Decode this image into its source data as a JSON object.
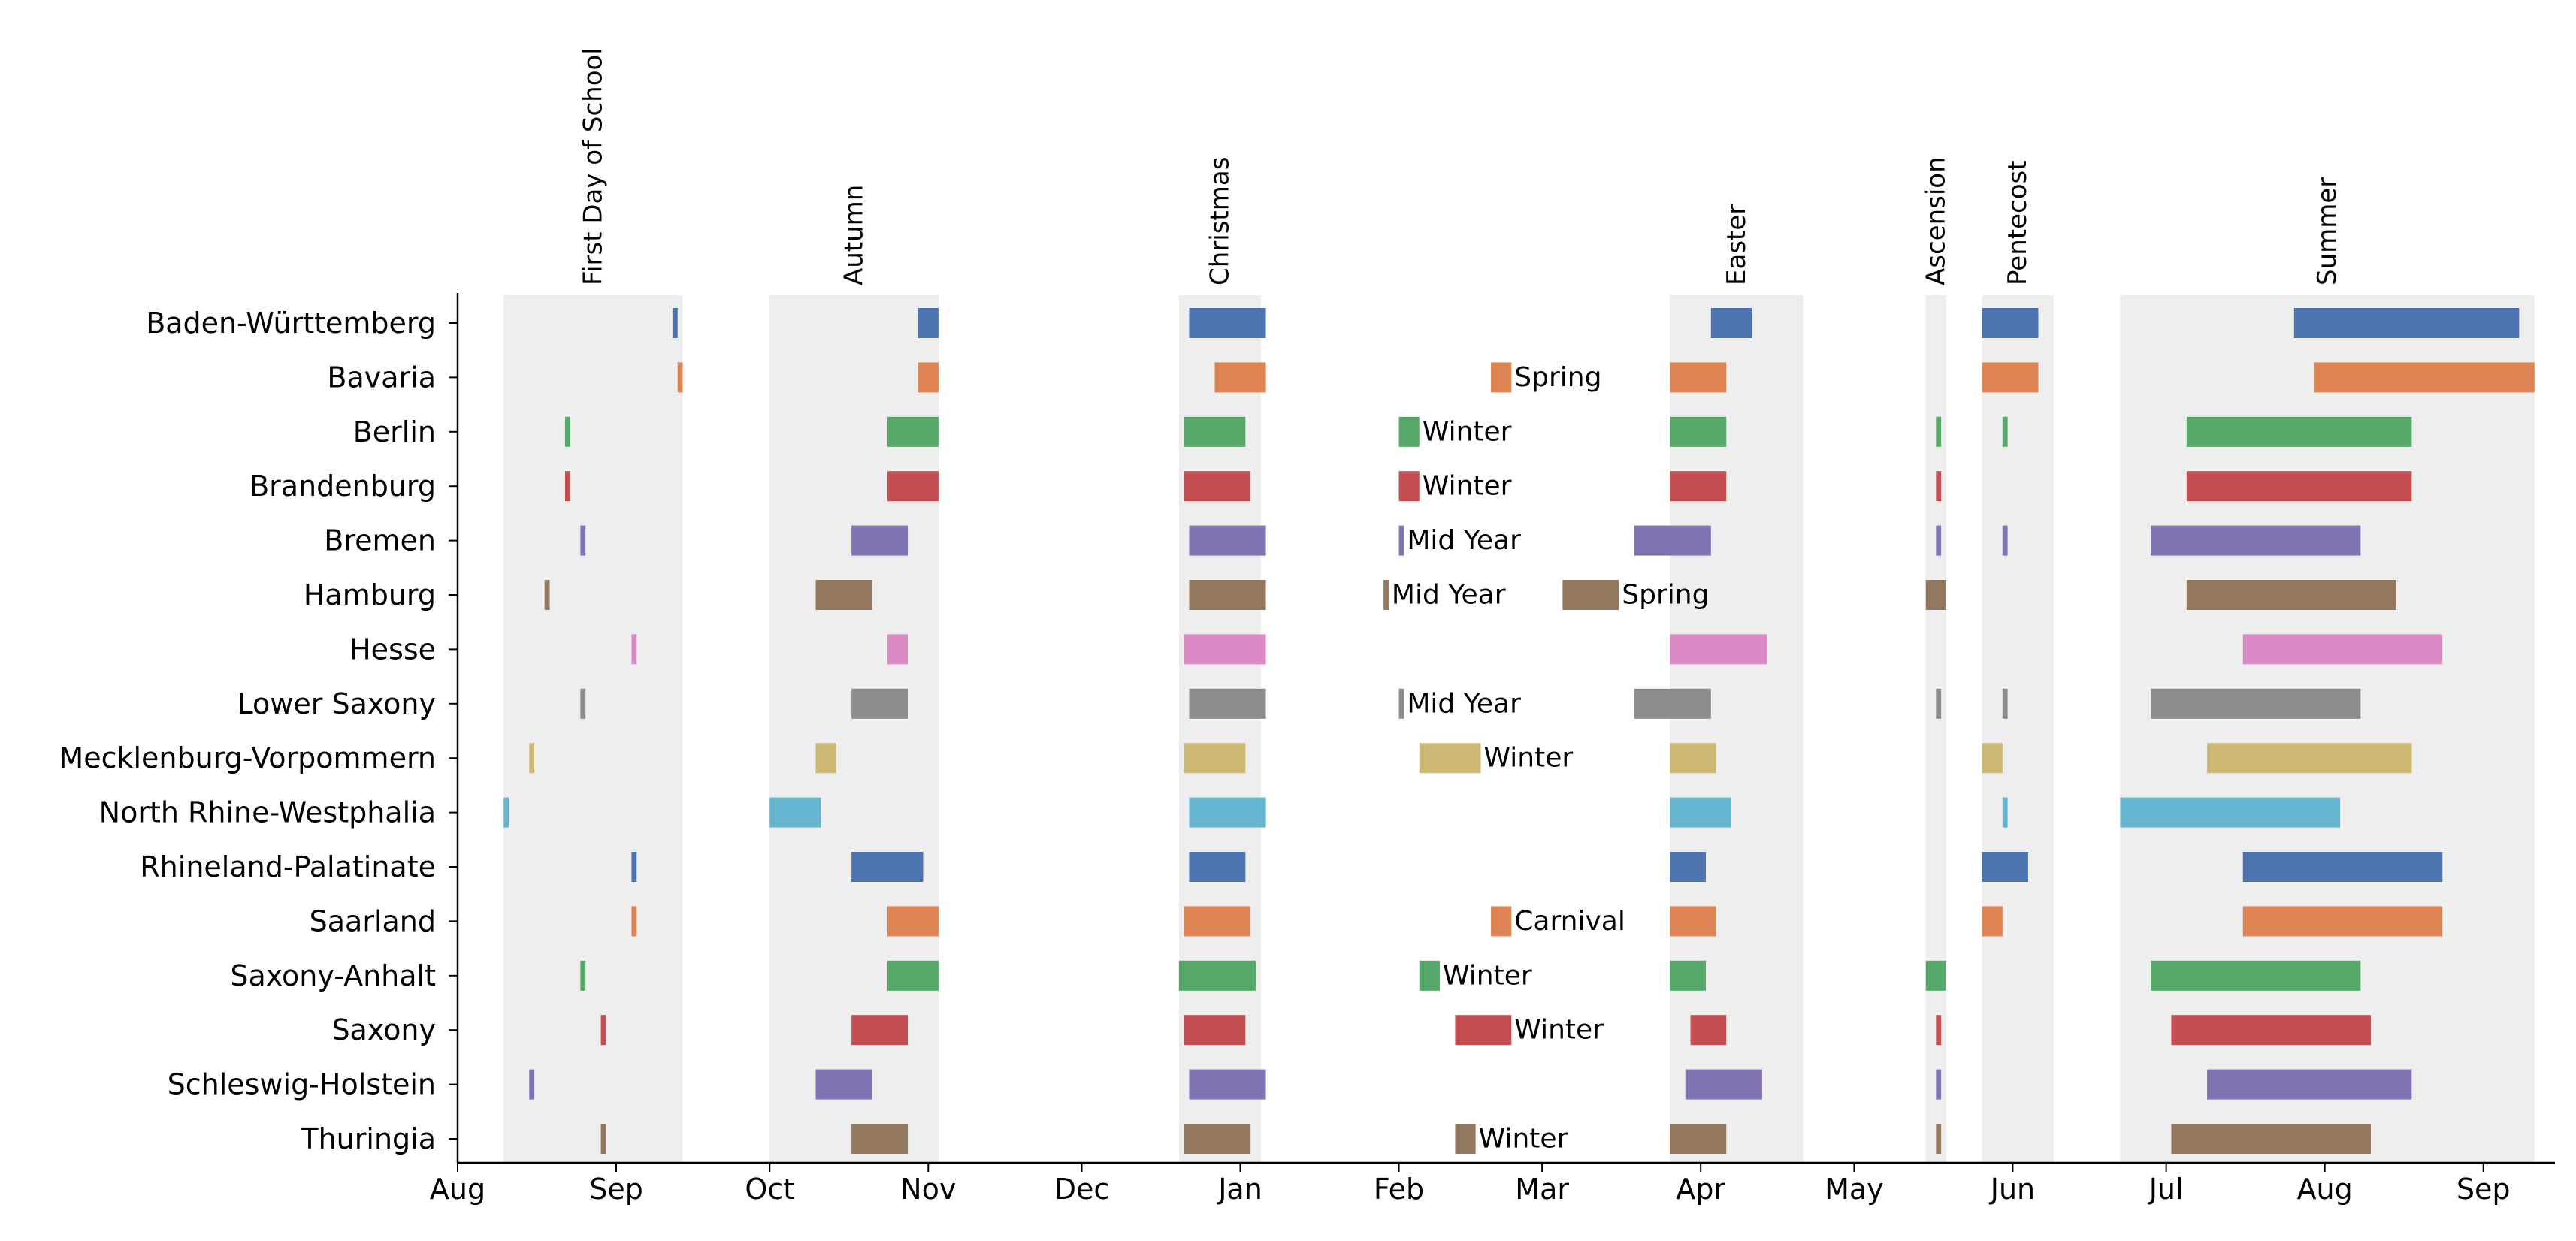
{
  "chart_data": {
    "type": "timeline",
    "colors": [
      "#4c72b0",
      "#dd8452",
      "#55a868",
      "#c44e52",
      "#8172b3",
      "#937860",
      "#da8bc3",
      "#8c8c8c",
      "#ccb974",
      "#64b5cd"
    ],
    "band_color": "#eeeeee",
    "x_axis": {
      "range": [
        "2017-08-01",
        "2018-09-15"
      ],
      "tick_labels": [
        {
          "date": "2017-08-01",
          "label": "Aug"
        },
        {
          "date": "2017-09-01",
          "label": "Sep"
        },
        {
          "date": "2017-10-01",
          "label": "Oct"
        },
        {
          "date": "2017-11-01",
          "label": "Nov"
        },
        {
          "date": "2017-12-01",
          "label": "Dec"
        },
        {
          "date": "2018-01-01",
          "label": "Jan"
        },
        {
          "date": "2018-02-01",
          "label": "Feb"
        },
        {
          "date": "2018-03-01",
          "label": "Mar"
        },
        {
          "date": "2018-04-01",
          "label": "Apr"
        },
        {
          "date": "2018-05-01",
          "label": "May"
        },
        {
          "date": "2018-06-01",
          "label": "Jun"
        },
        {
          "date": "2018-07-01",
          "label": "Jul"
        },
        {
          "date": "2018-08-01",
          "label": "Aug"
        },
        {
          "date": "2018-09-01",
          "label": "Sep"
        }
      ]
    },
    "holiday_periods": [
      {
        "label": "First Day of School",
        "start": "2017-08-10",
        "end": "2017-09-14"
      },
      {
        "label": "Autumn",
        "start": "2017-10-01",
        "end": "2017-11-03"
      },
      {
        "label": "Christmas",
        "start": "2017-12-20",
        "end": "2018-01-05"
      },
      {
        "label": "Easter",
        "start": "2018-03-26",
        "end": "2018-04-21"
      },
      {
        "label": "Ascension",
        "start": "2018-05-15",
        "end": "2018-05-19"
      },
      {
        "label": "Pentecost",
        "start": "2018-05-26",
        "end": "2018-06-09"
      },
      {
        "label": "Summer",
        "start": "2018-06-22",
        "end": "2018-09-11"
      }
    ],
    "states": [
      {
        "name": "Baden-Württemberg",
        "periods": [
          {
            "start": "2017-09-12",
            "end": "2017-09-13"
          },
          {
            "start": "2017-10-30",
            "end": "2017-11-03"
          },
          {
            "start": "2017-12-22",
            "end": "2018-01-06"
          },
          {
            "start": "2018-04-03",
            "end": "2018-04-11"
          },
          {
            "start": "2018-05-26",
            "end": "2018-06-06"
          },
          {
            "start": "2018-07-26",
            "end": "2018-09-08"
          }
        ]
      },
      {
        "name": "Bavaria",
        "periods": [
          {
            "start": "2017-09-13",
            "end": "2017-09-14"
          },
          {
            "start": "2017-10-30",
            "end": "2017-11-03"
          },
          {
            "start": "2017-12-27",
            "end": "2018-01-06"
          },
          {
            "start": "2018-02-19",
            "end": "2018-02-23",
            "label": "Spring"
          },
          {
            "start": "2018-03-26",
            "end": "2018-04-06"
          },
          {
            "start": "2018-05-26",
            "end": "2018-06-06"
          },
          {
            "start": "2018-07-30",
            "end": "2018-09-11"
          }
        ]
      },
      {
        "name": "Berlin",
        "periods": [
          {
            "start": "2017-08-22",
            "end": "2017-08-23"
          },
          {
            "start": "2017-10-24",
            "end": "2017-11-03"
          },
          {
            "start": "2017-12-21",
            "end": "2018-01-02"
          },
          {
            "start": "2018-02-01",
            "end": "2018-02-05",
            "label": "Winter"
          },
          {
            "start": "2018-03-26",
            "end": "2018-04-06"
          },
          {
            "start": "2018-05-17",
            "end": "2018-05-18"
          },
          {
            "start": "2018-05-30",
            "end": "2018-05-31"
          },
          {
            "start": "2018-07-05",
            "end": "2018-08-18"
          }
        ]
      },
      {
        "name": "Brandenburg",
        "periods": [
          {
            "start": "2017-08-22",
            "end": "2017-08-23"
          },
          {
            "start": "2017-10-24",
            "end": "2017-11-03"
          },
          {
            "start": "2017-12-21",
            "end": "2018-01-03"
          },
          {
            "start": "2018-02-01",
            "end": "2018-02-05",
            "label": "Winter"
          },
          {
            "start": "2018-03-26",
            "end": "2018-04-06"
          },
          {
            "start": "2018-05-17",
            "end": "2018-05-18"
          },
          {
            "start": "2018-07-05",
            "end": "2018-08-18"
          }
        ]
      },
      {
        "name": "Bremen",
        "periods": [
          {
            "start": "2017-08-25",
            "end": "2017-08-26"
          },
          {
            "start": "2017-10-17",
            "end": "2017-10-28"
          },
          {
            "start": "2017-12-22",
            "end": "2018-01-06"
          },
          {
            "start": "2018-02-01",
            "end": "2018-02-02",
            "label": "Mid Year"
          },
          {
            "start": "2018-03-19",
            "end": "2018-04-03"
          },
          {
            "start": "2018-05-17",
            "end": "2018-05-18"
          },
          {
            "start": "2018-05-30",
            "end": "2018-05-31"
          },
          {
            "start": "2018-06-28",
            "end": "2018-08-08"
          }
        ]
      },
      {
        "name": "Hamburg",
        "periods": [
          {
            "start": "2017-08-18",
            "end": "2017-08-19"
          },
          {
            "start": "2017-10-10",
            "end": "2017-10-21"
          },
          {
            "start": "2017-12-22",
            "end": "2018-01-06"
          },
          {
            "start": "2018-01-29",
            "end": "2018-01-30",
            "label": "Mid Year"
          },
          {
            "start": "2018-03-05",
            "end": "2018-03-16",
            "label": "Spring"
          },
          {
            "start": "2018-05-15",
            "end": "2018-05-19"
          },
          {
            "start": "2018-07-05",
            "end": "2018-08-15"
          }
        ]
      },
      {
        "name": "Hesse",
        "periods": [
          {
            "start": "2017-09-04",
            "end": "2017-09-05"
          },
          {
            "start": "2017-10-24",
            "end": "2017-10-28"
          },
          {
            "start": "2017-12-21",
            "end": "2018-01-06"
          },
          {
            "start": "2018-03-26",
            "end": "2018-04-14"
          },
          {
            "start": "2018-07-16",
            "end": "2018-08-24"
          }
        ]
      },
      {
        "name": "Lower Saxony",
        "periods": [
          {
            "start": "2017-08-25",
            "end": "2017-08-26"
          },
          {
            "start": "2017-10-17",
            "end": "2017-10-28"
          },
          {
            "start": "2017-12-22",
            "end": "2018-01-06"
          },
          {
            "start": "2018-02-01",
            "end": "2018-02-02",
            "label": "Mid Year"
          },
          {
            "start": "2018-03-19",
            "end": "2018-04-03"
          },
          {
            "start": "2018-05-17",
            "end": "2018-05-18"
          },
          {
            "start": "2018-05-30",
            "end": "2018-05-31"
          },
          {
            "start": "2018-06-28",
            "end": "2018-08-08"
          }
        ]
      },
      {
        "name": "Mecklenburg-Vorpommern",
        "periods": [
          {
            "start": "2017-08-15",
            "end": "2017-08-16"
          },
          {
            "start": "2017-10-10",
            "end": "2017-10-14"
          },
          {
            "start": "2017-12-21",
            "end": "2018-01-02"
          },
          {
            "start": "2018-02-05",
            "end": "2018-02-17",
            "label": "Winter"
          },
          {
            "start": "2018-03-26",
            "end": "2018-04-04"
          },
          {
            "start": "2018-05-26",
            "end": "2018-05-30"
          },
          {
            "start": "2018-07-09",
            "end": "2018-08-18"
          }
        ]
      },
      {
        "name": "North Rhine-Westphalia",
        "periods": [
          {
            "start": "2017-08-10",
            "end": "2017-08-11"
          },
          {
            "start": "2017-10-01",
            "end": "2017-10-11"
          },
          {
            "start": "2017-12-22",
            "end": "2018-01-06"
          },
          {
            "start": "2018-03-26",
            "end": "2018-04-07"
          },
          {
            "start": "2018-05-30",
            "end": "2018-05-31"
          },
          {
            "start": "2018-06-22",
            "end": "2018-08-04"
          }
        ]
      },
      {
        "name": "Rhineland-Palatinate",
        "periods": [
          {
            "start": "2017-09-04",
            "end": "2017-09-05"
          },
          {
            "start": "2017-10-17",
            "end": "2017-10-31"
          },
          {
            "start": "2017-12-22",
            "end": "2018-01-02"
          },
          {
            "start": "2018-03-26",
            "end": "2018-04-02"
          },
          {
            "start": "2018-05-26",
            "end": "2018-06-04"
          },
          {
            "start": "2018-07-16",
            "end": "2018-08-24"
          }
        ]
      },
      {
        "name": "Saarland",
        "periods": [
          {
            "start": "2017-09-04",
            "end": "2017-09-05"
          },
          {
            "start": "2017-10-24",
            "end": "2017-11-03"
          },
          {
            "start": "2017-12-21",
            "end": "2018-01-03"
          },
          {
            "start": "2018-02-19",
            "end": "2018-02-23",
            "label": "Carnival"
          },
          {
            "start": "2018-03-26",
            "end": "2018-04-04"
          },
          {
            "start": "2018-05-26",
            "end": "2018-05-30"
          },
          {
            "start": "2018-07-16",
            "end": "2018-08-24"
          }
        ]
      },
      {
        "name": "Saxony-Anhalt",
        "periods": [
          {
            "start": "2017-08-25",
            "end": "2017-08-26"
          },
          {
            "start": "2017-10-24",
            "end": "2017-11-03"
          },
          {
            "start": "2017-12-20",
            "end": "2018-01-04"
          },
          {
            "start": "2018-02-05",
            "end": "2018-02-09",
            "label": "Winter"
          },
          {
            "start": "2018-03-26",
            "end": "2018-04-02"
          },
          {
            "start": "2018-05-15",
            "end": "2018-05-19"
          },
          {
            "start": "2018-06-28",
            "end": "2018-08-08"
          }
        ]
      },
      {
        "name": "Saxony",
        "periods": [
          {
            "start": "2017-08-29",
            "end": "2017-08-30"
          },
          {
            "start": "2017-10-17",
            "end": "2017-10-28"
          },
          {
            "start": "2017-12-21",
            "end": "2018-01-02"
          },
          {
            "start": "2018-02-12",
            "end": "2018-02-23",
            "label": "Winter"
          },
          {
            "start": "2018-03-30",
            "end": "2018-04-06"
          },
          {
            "start": "2018-05-17",
            "end": "2018-05-18"
          },
          {
            "start": "2018-07-02",
            "end": "2018-08-10"
          }
        ]
      },
      {
        "name": "Schleswig-Holstein",
        "periods": [
          {
            "start": "2017-08-15",
            "end": "2017-08-16"
          },
          {
            "start": "2017-10-10",
            "end": "2017-10-21"
          },
          {
            "start": "2017-12-22",
            "end": "2018-01-06"
          },
          {
            "start": "2018-03-29",
            "end": "2018-04-13"
          },
          {
            "start": "2018-05-17",
            "end": "2018-05-18"
          },
          {
            "start": "2018-07-09",
            "end": "2018-08-18"
          }
        ]
      },
      {
        "name": "Thuringia",
        "periods": [
          {
            "start": "2017-08-29",
            "end": "2017-08-30"
          },
          {
            "start": "2017-10-17",
            "end": "2017-10-28"
          },
          {
            "start": "2017-12-21",
            "end": "2018-01-03"
          },
          {
            "start": "2018-02-12",
            "end": "2018-02-16",
            "label": "Winter"
          },
          {
            "start": "2018-03-26",
            "end": "2018-04-06"
          },
          {
            "start": "2018-05-17",
            "end": "2018-05-18"
          },
          {
            "start": "2018-07-02",
            "end": "2018-08-10"
          }
        ]
      }
    ]
  }
}
